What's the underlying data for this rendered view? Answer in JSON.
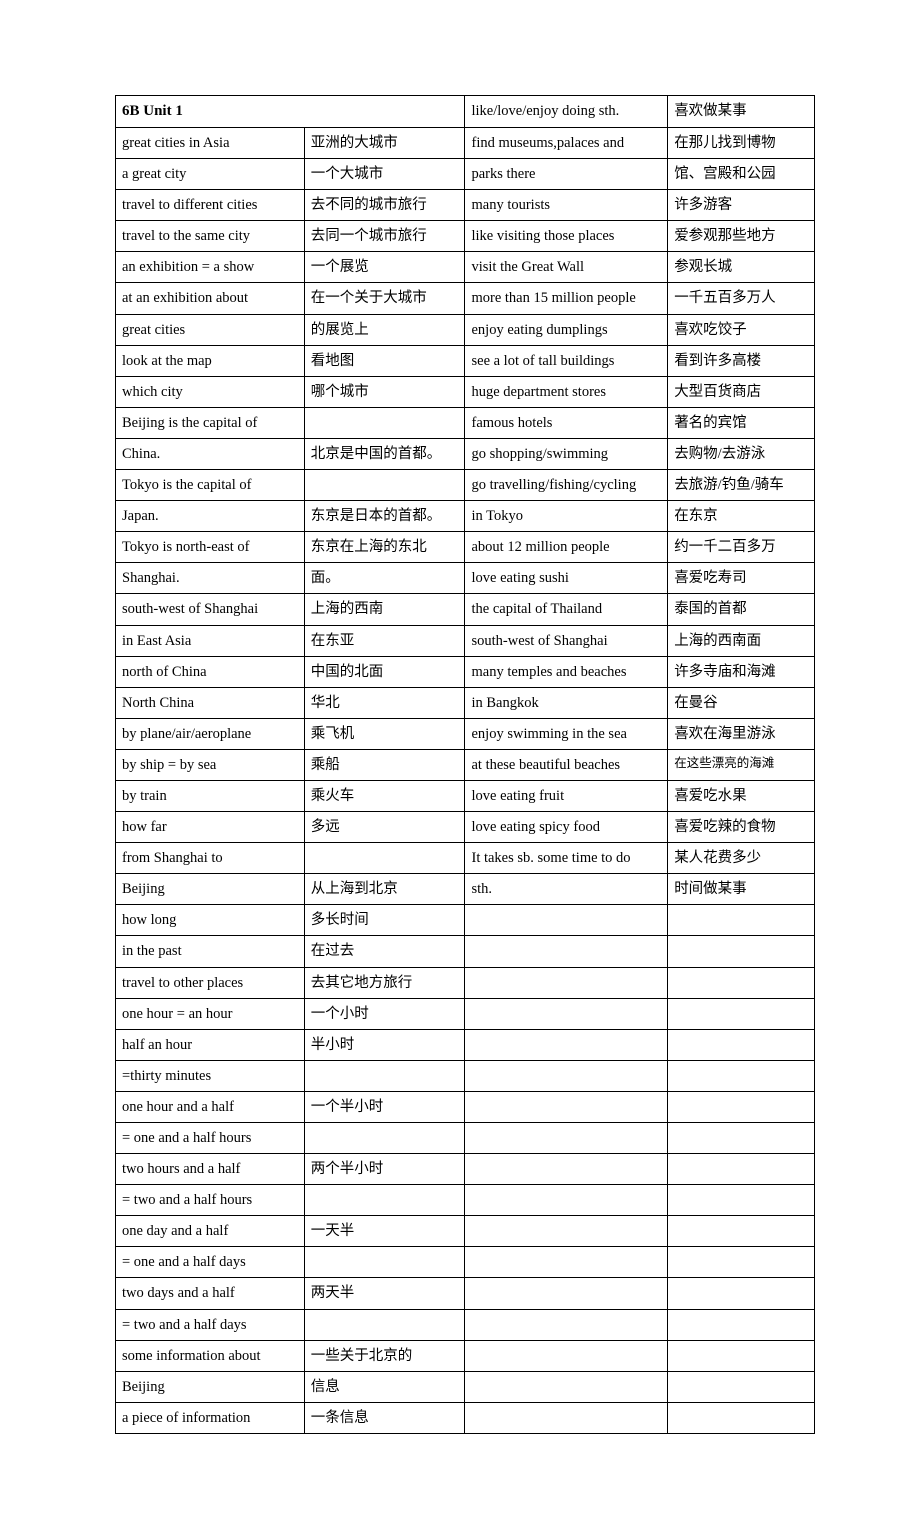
{
  "header": "6B Unit 1",
  "rows": [
    [
      "",
      "",
      "like/love/enjoy doing sth.",
      "喜欢做某事"
    ],
    [
      "great cities in Asia",
      "亚洲的大城市",
      "find museums,palaces and",
      "在那儿找到博物"
    ],
    [
      "a great city",
      "一个大城市",
      "parks there",
      "馆、宫殿和公园"
    ],
    [
      "travel to different cities",
      "去不同的城市旅行",
      "many tourists",
      "许多游客"
    ],
    [
      "travel to the same city",
      "去同一个城市旅行",
      "like visiting those places",
      "爱参观那些地方"
    ],
    [
      "an exhibition = a show",
      "一个展览",
      "visit the Great Wall",
      "参观长城"
    ],
    [
      "at an exhibition about",
      "在一个关于大城市",
      "more than 15 million people",
      "一千五百多万人"
    ],
    [
      "great cities",
      "的展览上",
      "enjoy eating dumplings",
      "喜欢吃饺子"
    ],
    [
      "look at the map",
      "看地图",
      "see a lot of tall buildings",
      "看到许多高楼"
    ],
    [
      "which city",
      "哪个城市",
      "huge department stores",
      "大型百货商店"
    ],
    [
      "Beijing is the capital of",
      "",
      "famous hotels",
      "著名的宾馆"
    ],
    [
      "China.",
      "北京是中国的首都。",
      "go shopping/swimming",
      "去购物/去游泳"
    ],
    [
      "Tokyo is the capital of",
      "",
      "go travelling/fishing/cycling",
      "去旅游/钓鱼/骑车"
    ],
    [
      "Japan.",
      "东京是日本的首都。",
      "in Tokyo",
      "在东京"
    ],
    [
      "Tokyo is north-east of",
      "东京在上海的东北",
      "about 12 million people",
      "约一千二百多万"
    ],
    [
      "Shanghai.",
      "面。",
      "love eating sushi",
      "喜爱吃寿司"
    ],
    [
      "south-west of Shanghai",
      "上海的西南",
      "the capital of Thailand",
      "泰国的首都"
    ],
    [
      "in East Asia",
      "在东亚",
      "south-west of Shanghai",
      "上海的西南面"
    ],
    [
      "north of China",
      "中国的北面",
      "many temples and beaches",
      "许多寺庙和海滩"
    ],
    [
      "North China",
      "华北",
      "in Bangkok",
      "在曼谷"
    ],
    [
      "by plane/air/aeroplane",
      "乘飞机",
      "enjoy swimming in the sea",
      "喜欢在海里游泳"
    ],
    [
      "by ship = by sea",
      "乘船",
      "at these beautiful beaches",
      "在这些漂亮的海滩"
    ],
    [
      "by train",
      "乘火车",
      "love eating fruit",
      "喜爱吃水果"
    ],
    [
      "how far",
      "多远",
      "love eating spicy food",
      "喜爱吃辣的食物"
    ],
    [
      "from Shanghai to",
      "",
      "It takes sb. some time to do",
      "某人花费多少"
    ],
    [
      "Beijing",
      "从上海到北京",
      "sth.",
      "时间做某事"
    ],
    [
      "how long",
      "多长时间",
      "",
      ""
    ],
    [
      "in the past",
      "在过去",
      "",
      ""
    ],
    [
      "travel to other places",
      "去其它地方旅行",
      "",
      ""
    ],
    [
      "one hour = an hour",
      "一个小时",
      "",
      ""
    ],
    [
      "half an hour",
      "半小时",
      "",
      ""
    ],
    [
      "=thirty minutes",
      "",
      "",
      ""
    ],
    [
      "one hour and a half",
      "一个半小时",
      "",
      ""
    ],
    [
      "  = one and a half hours",
      "",
      "",
      ""
    ],
    [
      "two hours and a half",
      "两个半小时",
      "",
      ""
    ],
    [
      "= two and a half hours",
      "",
      "",
      ""
    ],
    [
      "one day and a half",
      "一天半",
      "",
      ""
    ],
    [
      "= one and a half days",
      "",
      "",
      ""
    ],
    [
      "two   days and a half",
      "两天半",
      "",
      ""
    ],
    [
      "  = two and a half days",
      "",
      "",
      ""
    ],
    [
      "some information about",
      "一些关于北京的",
      "",
      ""
    ],
    [
      "Beijing",
      "信息",
      "",
      ""
    ],
    [
      "a piece of information",
      "一条信息",
      "",
      ""
    ]
  ],
  "small_cells": [
    [
      21,
      3
    ]
  ]
}
